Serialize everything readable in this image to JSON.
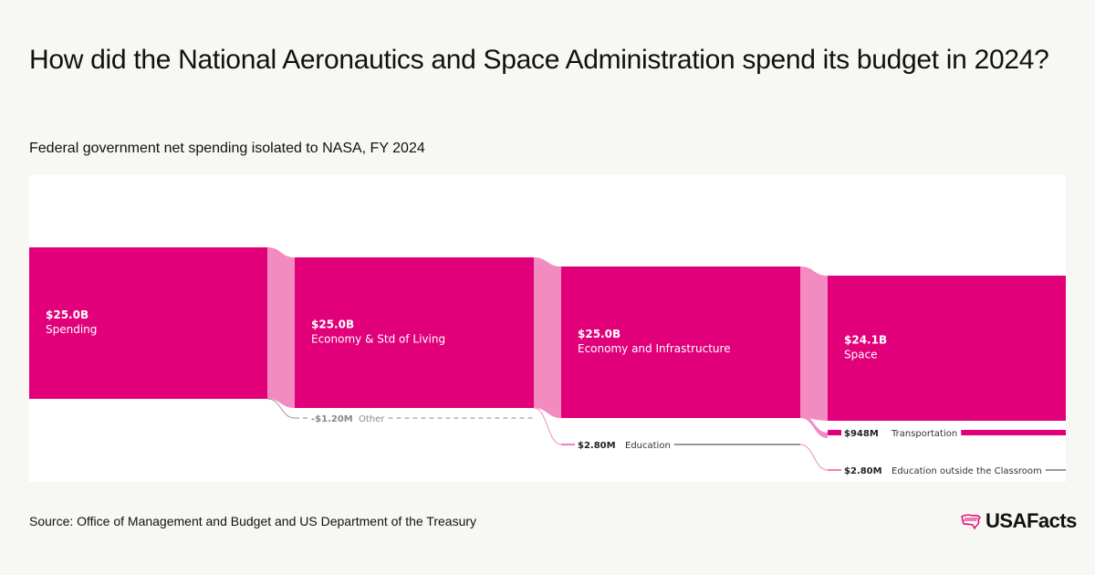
{
  "title": "How did the National Aeronautics and Space Administration spend its budget in 2024?",
  "subtitle": "Federal government net spending isolated to NASA, FY 2024",
  "source": "Source: Office of Management and Budget and US Department of the Treasury",
  "logo_text": "USAFacts",
  "colors": {
    "node": "#e2007a",
    "link": "#f28cc0",
    "bg": "#f7f7f3"
  },
  "chart_data": {
    "type": "sankey",
    "title": "How did the National Aeronautics and Space Administration spend its budget in 2024?",
    "nodes": [
      {
        "id": "spending",
        "value_label": "$25.0B",
        "label": "Spending",
        "value": 25000000000.0
      },
      {
        "id": "econ_std",
        "value_label": "$25.0B",
        "label": "Economy & Std of Living",
        "value": 25000000000.0
      },
      {
        "id": "other",
        "value_label": "-$1.20M",
        "label": "Other",
        "value": -1200000.0
      },
      {
        "id": "econ_infra",
        "value_label": "$25.0B",
        "label": "Economy and Infrastructure",
        "value": 25000000000.0
      },
      {
        "id": "education",
        "value_label": "$2.80M",
        "label": "Education",
        "value": 2800000.0
      },
      {
        "id": "space",
        "value_label": "$24.1B",
        "label": "Space",
        "value": 24100000000.0
      },
      {
        "id": "transportation",
        "value_label": "$948M",
        "label": "Transportation",
        "value": 948000000.0
      },
      {
        "id": "edu_outside",
        "value_label": "$2.80M",
        "label": "Education outside the Classroom",
        "value": 2800000.0
      }
    ],
    "links": [
      {
        "source": "spending",
        "target": "econ_std",
        "value": 25000000000.0
      },
      {
        "source": "spending",
        "target": "other",
        "value": -1200000.0
      },
      {
        "source": "econ_std",
        "target": "econ_infra",
        "value": 25000000000.0
      },
      {
        "source": "econ_std",
        "target": "education",
        "value": 2800000.0
      },
      {
        "source": "econ_infra",
        "target": "space",
        "value": 24100000000.0
      },
      {
        "source": "econ_infra",
        "target": "transportation",
        "value": 948000000.0
      },
      {
        "source": "education",
        "target": "edu_outside",
        "value": 2800000.0
      }
    ]
  }
}
